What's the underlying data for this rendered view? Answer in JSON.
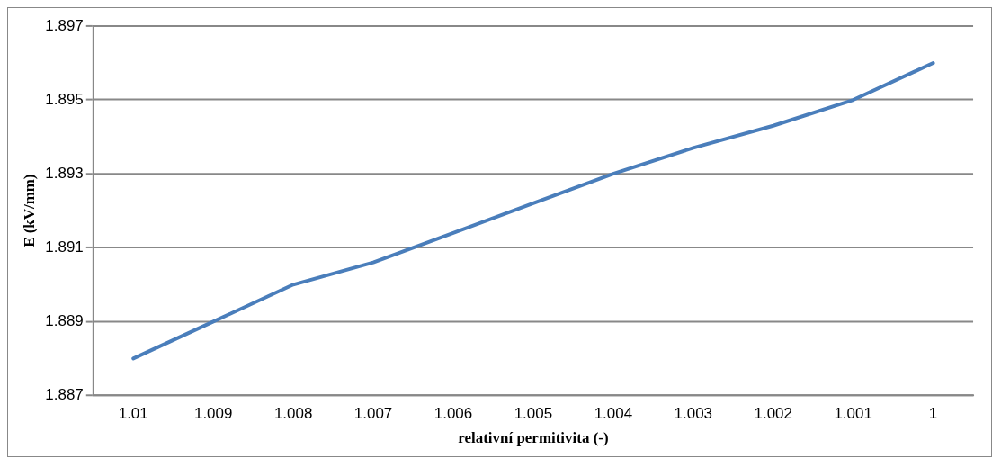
{
  "chart_data": {
    "type": "line",
    "xlabel": "relativní permitivita (-)",
    "ylabel": "E (kV/mm)",
    "categories": [
      "1.01",
      "1.009",
      "1.008",
      "1.007",
      "1.006",
      "1.005",
      "1.004",
      "1.003",
      "1.002",
      "1.001",
      "1"
    ],
    "series": [
      {
        "color": "#4a7ebb",
        "values": [
          1.888,
          1.889,
          1.89,
          1.8906,
          1.8914,
          1.8922,
          1.893,
          1.8937,
          1.8943,
          1.895,
          1.896
        ]
      }
    ],
    "ylim": [
      1.887,
      1.897
    ],
    "yticks": [
      1.887,
      1.889,
      1.891,
      1.893,
      1.895,
      1.897
    ],
    "grid": "y",
    "legend": false,
    "marker": "none",
    "line_style": "solid"
  }
}
